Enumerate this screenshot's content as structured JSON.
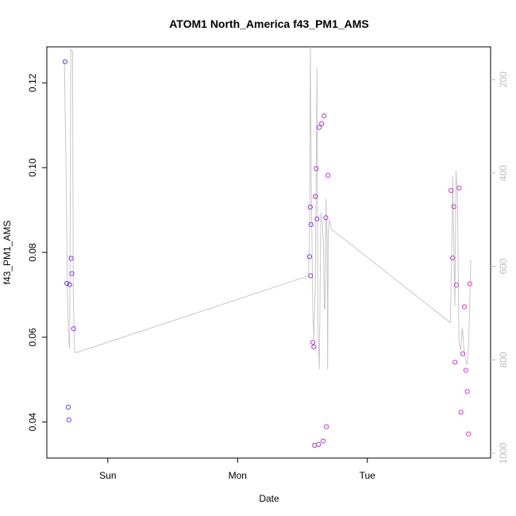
{
  "chart_data": {
    "type": "scatter",
    "title": "ATOM1 North_America f43_PM1_AMS",
    "xlabel": "Date",
    "ylabel": "f43_PM1_AMS",
    "x_ticks": [
      "Sun",
      "Mon",
      "Tue"
    ],
    "x_tick_values": [
      0,
      1,
      2
    ],
    "xlim": [
      -0.47,
      2.95
    ],
    "ylim": [
      0.0315,
      0.1285
    ],
    "y_ticks": [
      0.04,
      0.06,
      0.08,
      0.1,
      0.12
    ],
    "y_tick_labels": [
      "0.04",
      "0.06",
      "0.08",
      "0.10",
      "0.12"
    ],
    "right_axis": {
      "ticks": [
        200,
        400,
        600,
        800,
        1000
      ],
      "tick_labels": [
        "200",
        "400",
        "600",
        "800",
        "1000"
      ],
      "ylim": [
        1010,
        130
      ],
      "color": "#bdbdbd"
    },
    "colors": {
      "line": "#c8c8c8",
      "points_start": "#6a3cf0",
      "points_end": "#ee33cc"
    },
    "points": [
      [
        -0.33,
        0.125
      ],
      [
        -0.316,
        0.0727
      ],
      [
        -0.305,
        0.0435
      ],
      [
        -0.3,
        0.0405
      ],
      [
        -0.294,
        0.0724
      ],
      [
        -0.283,
        0.0786
      ],
      [
        -0.277,
        0.075
      ],
      [
        -0.264,
        0.062
      ],
      [
        1.555,
        0.079
      ],
      [
        1.56,
        0.0907
      ],
      [
        1.563,
        0.0745
      ],
      [
        1.566,
        0.0866
      ],
      [
        1.58,
        0.0588
      ],
      [
        1.588,
        0.0577
      ],
      [
        1.594,
        0.0345
      ],
      [
        1.6,
        0.0932
      ],
      [
        1.606,
        0.0998
      ],
      [
        1.612,
        0.0879
      ],
      [
        1.624,
        0.0347
      ],
      [
        1.63,
        0.1095
      ],
      [
        1.648,
        0.1104
      ],
      [
        1.66,
        0.0355
      ],
      [
        1.667,
        0.1122
      ],
      [
        1.68,
        0.0882
      ],
      [
        1.685,
        0.0389
      ],
      [
        1.697,
        0.0982
      ],
      [
        2.645,
        0.0946
      ],
      [
        2.657,
        0.0787
      ],
      [
        2.667,
        0.0908
      ],
      [
        2.676,
        0.0541
      ],
      [
        2.687,
        0.0723
      ],
      [
        2.708,
        0.0952
      ],
      [
        2.721,
        0.0423
      ],
      [
        2.736,
        0.0561
      ],
      [
        2.748,
        0.0672
      ],
      [
        2.759,
        0.0522
      ],
      [
        2.77,
        0.0472
      ],
      [
        2.78,
        0.0372
      ],
      [
        2.79,
        0.0726
      ]
    ],
    "line_secondary": [
      [
        -0.335,
        160
      ],
      [
        -0.322,
        390
      ],
      [
        -0.312,
        640
      ],
      [
        -0.302,
        760
      ],
      [
        -0.294,
        775
      ],
      [
        -0.285,
        135
      ],
      [
        -0.272,
        140
      ],
      [
        -0.266,
        660
      ],
      [
        -0.256,
        780
      ],
      [
        -0.249,
        785
      ],
      [
        1.548,
        620
      ],
      [
        1.556,
        500
      ],
      [
        1.561,
        130
      ],
      [
        1.568,
        420
      ],
      [
        1.574,
        560
      ],
      [
        1.58,
        700
      ],
      [
        1.588,
        755
      ],
      [
        1.6,
        630
      ],
      [
        1.612,
        175
      ],
      [
        1.619,
        720
      ],
      [
        1.63,
        820
      ],
      [
        1.642,
        485
      ],
      [
        1.655,
        510
      ],
      [
        1.662,
        560
      ],
      [
        1.668,
        690
      ],
      [
        1.673,
        690
      ],
      [
        1.682,
        455
      ],
      [
        1.689,
        545
      ],
      [
        1.694,
        820
      ],
      [
        1.699,
        525
      ],
      [
        1.706,
        500
      ],
      [
        1.723,
        520
      ],
      [
        2.64,
        720
      ],
      [
        2.652,
        545
      ],
      [
        2.658,
        405
      ],
      [
        2.67,
        610
      ],
      [
        2.675,
        685
      ],
      [
        2.683,
        395
      ],
      [
        2.695,
        450
      ],
      [
        2.706,
        760
      ],
      [
        2.718,
        780
      ],
      [
        2.733,
        730
      ],
      [
        2.745,
        780
      ],
      [
        2.758,
        800
      ],
      [
        2.77,
        810
      ],
      [
        2.78,
        770
      ],
      [
        2.788,
        700
      ],
      [
        2.797,
        585
      ]
    ]
  }
}
